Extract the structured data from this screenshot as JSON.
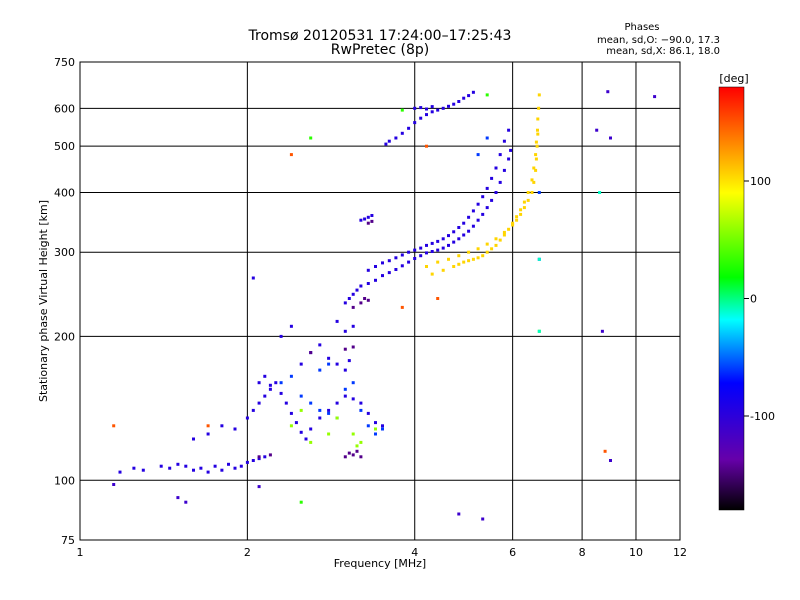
{
  "chart_data": {
    "type": "scatter",
    "title": "Tromsø 20120531 17:24:00–17:25:43",
    "subtitle": "RwPretec (8p)",
    "xlabel": "Frequency [MHz]",
    "ylabel": "Stationary phase Virtual Height [km]",
    "x_scale": "log",
    "y_scale": "log",
    "xlim": [
      1,
      12
    ],
    "ylim": [
      75,
      750
    ],
    "x_ticks": [
      1,
      2,
      4,
      6,
      8,
      10,
      12
    ],
    "y_ticks": [
      75,
      100,
      200,
      300,
      400,
      500,
      600,
      750
    ],
    "grid": true,
    "legend_block": {
      "title": "Phases",
      "lines": [
        "mean, sd,O: −90.0, 17.3",
        "mean, sd,X: 86.1, 18.0"
      ],
      "placement": "top-right"
    },
    "colorbar": {
      "label": "[deg]",
      "range": [
        -180,
        180
      ],
      "ticks": [
        100,
        0,
        -100
      ],
      "colors": [
        "#000000",
        "#6600aa",
        "#0000ff",
        "#00ffff",
        "#00ff00",
        "#ffff00",
        "#ff0000"
      ]
    },
    "series": [
      {
        "phase_deg": -95,
        "points": [
          [
            1.18,
            104
          ],
          [
            1.25,
            106
          ],
          [
            1.3,
            105
          ],
          [
            1.4,
            107
          ],
          [
            1.45,
            106
          ],
          [
            1.5,
            108
          ],
          [
            1.55,
            107
          ],
          [
            1.6,
            105
          ],
          [
            1.65,
            106
          ],
          [
            1.7,
            104
          ],
          [
            1.75,
            107
          ],
          [
            1.8,
            105
          ],
          [
            1.85,
            108
          ],
          [
            1.9,
            106
          ],
          [
            1.95,
            107
          ],
          [
            2.0,
            109
          ],
          [
            2.05,
            110
          ],
          [
            2.1,
            111
          ],
          [
            2.15,
            112
          ],
          [
            1.6,
            122
          ],
          [
            1.7,
            125
          ],
          [
            1.8,
            130
          ],
          [
            1.9,
            128
          ],
          [
            2.0,
            135
          ],
          [
            2.05,
            140
          ],
          [
            2.1,
            145
          ],
          [
            2.15,
            150
          ],
          [
            2.2,
            155
          ],
          [
            2.25,
            160
          ],
          [
            2.3,
            152
          ],
          [
            2.35,
            145
          ],
          [
            2.4,
            138
          ],
          [
            2.45,
            132
          ],
          [
            2.5,
            126
          ],
          [
            2.55,
            122
          ],
          [
            2.6,
            128
          ],
          [
            2.7,
            135
          ],
          [
            2.8,
            140
          ],
          [
            2.9,
            145
          ],
          [
            3.0,
            150
          ],
          [
            3.1,
            148
          ],
          [
            3.2,
            145
          ],
          [
            3.3,
            138
          ],
          [
            3.4,
            132
          ],
          [
            3.5,
            130
          ],
          [
            2.1,
            160
          ],
          [
            2.15,
            165
          ],
          [
            2.2,
            158
          ],
          [
            2.5,
            175
          ],
          [
            2.6,
            185
          ],
          [
            2.7,
            192
          ],
          [
            2.8,
            180
          ],
          [
            2.9,
            175
          ],
          [
            3.0,
            170
          ],
          [
            3.05,
            178
          ],
          [
            3.0,
            235
          ],
          [
            3.05,
            240
          ],
          [
            3.1,
            245
          ],
          [
            3.15,
            250
          ],
          [
            3.2,
            255
          ],
          [
            3.3,
            258
          ],
          [
            3.4,
            262
          ],
          [
            3.5,
            268
          ],
          [
            3.6,
            272
          ],
          [
            3.7,
            276
          ],
          [
            3.8,
            281
          ],
          [
            3.9,
            286
          ],
          [
            4.0,
            291
          ],
          [
            4.1,
            295
          ],
          [
            4.2,
            299
          ],
          [
            4.3,
            301
          ],
          [
            4.4,
            303
          ],
          [
            4.5,
            306
          ],
          [
            4.6,
            310
          ],
          [
            4.7,
            315
          ],
          [
            4.8,
            320
          ],
          [
            4.9,
            326
          ],
          [
            5.0,
            332
          ],
          [
            5.1,
            340
          ],
          [
            5.2,
            350
          ],
          [
            5.3,
            360
          ],
          [
            5.4,
            372
          ],
          [
            5.5,
            385
          ],
          [
            5.6,
            400
          ],
          [
            5.7,
            420
          ],
          [
            5.8,
            445
          ],
          [
            5.9,
            470
          ],
          [
            5.95,
            490
          ],
          [
            3.3,
            275
          ],
          [
            3.4,
            280
          ],
          [
            3.5,
            285
          ],
          [
            3.6,
            288
          ],
          [
            3.7,
            292
          ],
          [
            3.8,
            296
          ],
          [
            3.9,
            300
          ],
          [
            4.0,
            303
          ],
          [
            4.1,
            306
          ],
          [
            4.2,
            310
          ],
          [
            4.3,
            313
          ],
          [
            4.4,
            316
          ],
          [
            4.5,
            320
          ],
          [
            4.6,
            325
          ],
          [
            4.7,
            331
          ],
          [
            4.8,
            338
          ],
          [
            4.9,
            345
          ],
          [
            5.0,
            355
          ],
          [
            5.1,
            366
          ],
          [
            5.2,
            378
          ],
          [
            5.3,
            392
          ],
          [
            5.4,
            408
          ],
          [
            5.5,
            428
          ],
          [
            5.6,
            450
          ],
          [
            5.7,
            480
          ],
          [
            5.8,
            512
          ],
          [
            5.9,
            540
          ],
          [
            3.2,
            350
          ],
          [
            3.25,
            352
          ],
          [
            3.3,
            355
          ],
          [
            3.35,
            358
          ],
          [
            3.55,
            505
          ],
          [
            3.6,
            512
          ],
          [
            3.7,
            520
          ],
          [
            3.8,
            532
          ],
          [
            3.9,
            545
          ],
          [
            4.0,
            560
          ],
          [
            4.1,
            572
          ],
          [
            4.2,
            582
          ],
          [
            4.3,
            590
          ],
          [
            4.4,
            595
          ],
          [
            4.5,
            600
          ],
          [
            4.6,
            606
          ],
          [
            4.7,
            612
          ],
          [
            4.8,
            620
          ],
          [
            4.9,
            630
          ],
          [
            5.0,
            638
          ],
          [
            5.1,
            648
          ],
          [
            4.0,
            600
          ],
          [
            4.1,
            602
          ],
          [
            4.2,
            598
          ],
          [
            4.3,
            605
          ],
          [
            2.05,
            265
          ],
          [
            2.4,
            210
          ],
          [
            2.3,
            200
          ],
          [
            3.0,
            205
          ],
          [
            2.9,
            215
          ],
          [
            3.1,
            210
          ]
        ]
      },
      {
        "phase_deg": -145,
        "points": [
          [
            3.0,
            112
          ],
          [
            3.05,
            114
          ],
          [
            3.1,
            113
          ],
          [
            3.15,
            115
          ],
          [
            3.2,
            112
          ],
          [
            3.1,
            230
          ],
          [
            3.2,
            235
          ],
          [
            3.25,
            240
          ],
          [
            3.3,
            238
          ],
          [
            3.0,
            188
          ],
          [
            3.1,
            190
          ],
          [
            2.6,
            185
          ],
          [
            3.3,
            345
          ],
          [
            3.35,
            348
          ],
          [
            2.1,
            112
          ],
          [
            2.2,
            113
          ]
        ]
      },
      {
        "phase_deg": -60,
        "points": [
          [
            2.3,
            160
          ],
          [
            2.4,
            165
          ],
          [
            2.5,
            150
          ],
          [
            2.6,
            145
          ],
          [
            2.7,
            140
          ],
          [
            2.8,
            138
          ],
          [
            2.9,
            135
          ],
          [
            3.0,
            155
          ],
          [
            3.1,
            160
          ],
          [
            3.2,
            140
          ],
          [
            3.3,
            130
          ],
          [
            3.4,
            125
          ],
          [
            3.5,
            128
          ],
          [
            2.7,
            170
          ],
          [
            2.8,
            175
          ],
          [
            5.2,
            480
          ],
          [
            5.4,
            520
          ],
          [
            6.7,
            290
          ],
          [
            6.7,
            400
          ]
        ]
      },
      {
        "phase_deg": 105,
        "points": [
          [
            4.3,
            270
          ],
          [
            4.5,
            275
          ],
          [
            4.7,
            280
          ],
          [
            4.8,
            283
          ],
          [
            4.9,
            286
          ],
          [
            5.0,
            288
          ],
          [
            5.1,
            290
          ],
          [
            5.2,
            292
          ],
          [
            5.3,
            295
          ],
          [
            5.4,
            300
          ],
          [
            5.5,
            305
          ],
          [
            5.6,
            310
          ],
          [
            5.7,
            318
          ],
          [
            5.8,
            326
          ],
          [
            5.9,
            335
          ],
          [
            6.0,
            345
          ],
          [
            6.1,
            356
          ],
          [
            6.2,
            368
          ],
          [
            6.3,
            382
          ],
          [
            6.4,
            400
          ],
          [
            6.5,
            425
          ],
          [
            6.55,
            450
          ],
          [
            6.6,
            480
          ],
          [
            6.62,
            510
          ],
          [
            6.65,
            540
          ],
          [
            6.66,
            570
          ],
          [
            6.68,
            600
          ],
          [
            6.7,
            640
          ],
          [
            4.2,
            280
          ],
          [
            4.4,
            286
          ],
          [
            4.6,
            290
          ],
          [
            4.8,
            295
          ],
          [
            5.0,
            300
          ],
          [
            5.2,
            305
          ],
          [
            5.4,
            312
          ],
          [
            5.6,
            320
          ],
          [
            5.8,
            330
          ],
          [
            6.0,
            342
          ],
          [
            6.1,
            350
          ],
          [
            6.2,
            360
          ],
          [
            6.3,
            372
          ],
          [
            6.4,
            385
          ],
          [
            6.5,
            400
          ],
          [
            6.55,
            420
          ],
          [
            6.6,
            445
          ],
          [
            6.62,
            470
          ],
          [
            6.64,
            500
          ],
          [
            6.66,
            530
          ]
        ]
      },
      {
        "phase_deg": 60,
        "points": [
          [
            2.6,
            120
          ],
          [
            2.8,
            125
          ],
          [
            2.9,
            135
          ],
          [
            3.2,
            120
          ],
          [
            3.4,
            128
          ],
          [
            2.4,
            130
          ],
          [
            2.5,
            140
          ],
          [
            3.1,
            125
          ],
          [
            3.15,
            118
          ]
        ]
      },
      {
        "phase_deg": 150,
        "points": [
          [
            1.15,
            130
          ],
          [
            2.4,
            480
          ],
          [
            3.8,
            230
          ],
          [
            4.4,
            240
          ],
          [
            8.8,
            115
          ],
          [
            1.7,
            130
          ],
          [
            4.2,
            500
          ]
        ]
      },
      {
        "phase_deg": 30,
        "points": [
          [
            3.8,
            595
          ],
          [
            5.4,
            640
          ],
          [
            6.7,
            205
          ],
          [
            2.5,
            90
          ],
          [
            2.6,
            520
          ]
        ]
      },
      {
        "phase_deg": -110,
        "points": [
          [
            8.9,
            650
          ],
          [
            10.8,
            635
          ],
          [
            8.5,
            540
          ],
          [
            9.0,
            520
          ],
          [
            8.7,
            205
          ],
          [
            9.0,
            110
          ],
          [
            4.8,
            85
          ],
          [
            5.3,
            83
          ],
          [
            1.5,
            92
          ],
          [
            1.55,
            90
          ],
          [
            1.15,
            98
          ],
          [
            2.1,
            97
          ]
        ]
      },
      {
        "phase_deg": -10,
        "points": [
          [
            6.7,
            205
          ],
          [
            8.6,
            400
          ],
          [
            6.7,
            290
          ]
        ]
      }
    ]
  }
}
